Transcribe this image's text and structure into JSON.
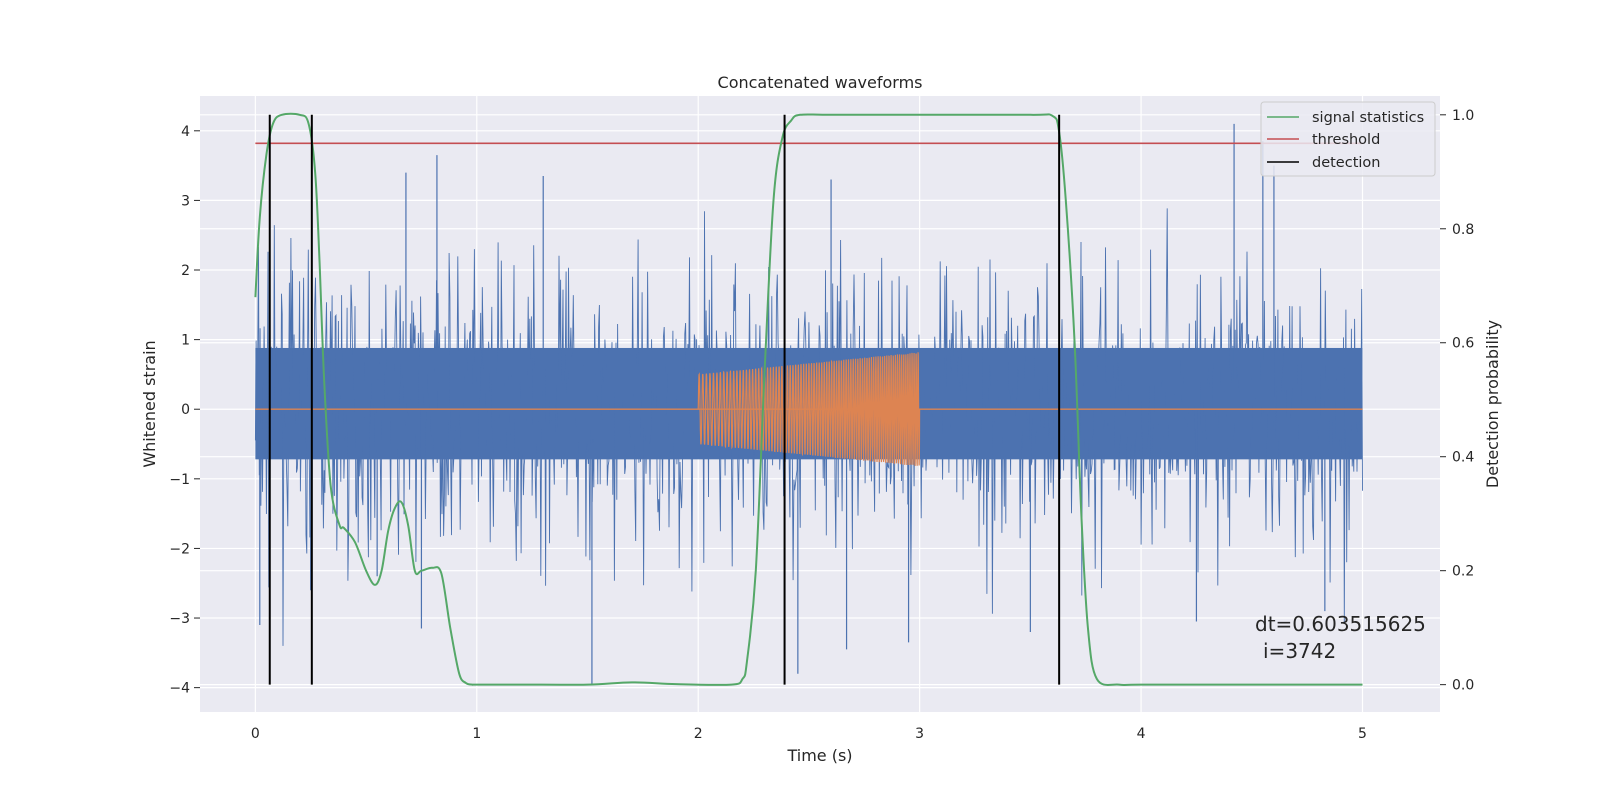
{
  "chart_data": {
    "type": "line",
    "title": "Concatenated waveforms",
    "xlabel": "Time (s)",
    "ylabel": "Whitened strain",
    "y2label": "Detection probability",
    "xlim": [
      -0.25,
      5.35
    ],
    "ylim": [
      -4.35,
      4.5
    ],
    "y2lim": [
      -0.048,
      1.033
    ],
    "xticks": [
      0,
      1,
      2,
      3,
      4,
      5
    ],
    "xtick_labels": [
      "0",
      "1",
      "2",
      "3",
      "4",
      "5"
    ],
    "yticks": [
      4,
      3,
      2,
      1,
      0,
      -1,
      -2,
      -3,
      -4
    ],
    "ytick_labels": [
      "4",
      "3",
      "2",
      "1",
      "0",
      "−1",
      "−2",
      "−3",
      "−4"
    ],
    "y2ticks": [
      1.0,
      0.8,
      0.6,
      0.4,
      0.2,
      0.0
    ],
    "y2tick_labels": [
      "1.0",
      "0.8",
      "0.6",
      "0.4",
      "0.2",
      "0.0"
    ],
    "grid": true,
    "legend_position": "top-right",
    "colors": {
      "noise": "#4c72b0",
      "injection": "#dd8452",
      "signal_statistics": "#55a868",
      "threshold": "#c44e52",
      "detection": "#000000",
      "background": "#eaeaf2",
      "grid": "#ffffff"
    },
    "series": [
      {
        "name": "signal statistics",
        "axis": "right",
        "x": [
          0,
          0.02,
          0.05,
          0.08,
          0.12,
          0.2,
          0.24,
          0.27,
          0.29,
          0.31,
          0.34,
          0.38,
          0.4,
          0.45,
          0.5,
          0.54,
          0.57,
          0.6,
          0.63,
          0.66,
          0.69,
          0.72,
          0.75,
          0.8,
          0.84,
          0.88,
          0.92,
          0.95,
          0.98,
          1.0,
          1.2,
          1.5,
          1.7,
          1.9,
          2.15,
          2.2,
          2.22,
          2.26,
          2.3,
          2.34,
          2.38,
          2.42,
          2.46,
          2.6,
          3.0,
          3.5,
          3.6,
          3.63,
          3.66,
          3.7,
          3.73,
          3.76,
          3.8,
          3.9,
          4.0,
          4.5,
          5.0
        ],
        "y": [
          0.68,
          0.82,
          0.93,
          0.985,
          1.0,
          1.0,
          0.985,
          0.9,
          0.74,
          0.54,
          0.35,
          0.28,
          0.275,
          0.25,
          0.2,
          0.175,
          0.2,
          0.27,
          0.31,
          0.32,
          0.28,
          0.2,
          0.2,
          0.205,
          0.195,
          0.1,
          0.02,
          0.003,
          0.0,
          0.0,
          0.0,
          0.0,
          0.004,
          0.001,
          0.0,
          0.01,
          0.04,
          0.2,
          0.55,
          0.85,
          0.96,
          0.99,
          1.0,
          1.0,
          1.0,
          1.0,
          0.998,
          0.97,
          0.85,
          0.6,
          0.3,
          0.1,
          0.01,
          0.0,
          0.0,
          0.0,
          0.0
        ]
      },
      {
        "name": "threshold",
        "axis": "right",
        "x": [
          0,
          5
        ],
        "y": [
          0.95,
          0.95
        ]
      },
      {
        "name": "detection",
        "axis": "right",
        "vlines_x": [
          0.065,
          0.255,
          2.39,
          3.63
        ],
        "ymin": 0.0,
        "ymax": 1.0
      }
    ],
    "noise": {
      "axis": "left",
      "x_start": 0,
      "x_end": 5,
      "band_range": [
        -0.72,
        0.88
      ],
      "spikes": [
        {
          "x": 0.02,
          "y": -3.1
        },
        {
          "x": 0.25,
          "y": -2.6
        },
        {
          "x": 0.55,
          "y": -2.4
        },
        {
          "x": 0.75,
          "y": -3.15
        },
        {
          "x": 1.52,
          "y": -3.95
        },
        {
          "x": 0.68,
          "y": 3.4
        },
        {
          "x": 0.82,
          "y": 3.65
        },
        {
          "x": 1.3,
          "y": 3.35
        },
        {
          "x": 2.45,
          "y": -3.8
        },
        {
          "x": 2.6,
          "y": 3.3
        },
        {
          "x": 2.67,
          "y": -3.45
        },
        {
          "x": 2.95,
          "y": -3.35
        },
        {
          "x": 3.5,
          "y": -3.2
        },
        {
          "x": 4.25,
          "y": -3.05
        },
        {
          "x": 4.42,
          "y": 4.1
        },
        {
          "x": 4.55,
          "y": 3.85
        },
        {
          "x": 4.6,
          "y": 3.5
        },
        {
          "x": 4.83,
          "y": -2.9
        }
      ]
    },
    "injection": {
      "axis": "left",
      "x_start": 2.0,
      "x_end": 3.0,
      "amp_start": 0.5,
      "amp_end": 0.82
    },
    "legend": [
      "signal statistics",
      "threshold",
      "detection"
    ],
    "annotation": {
      "line1": "dt=0.603515625",
      "line2": "i=3742"
    }
  }
}
